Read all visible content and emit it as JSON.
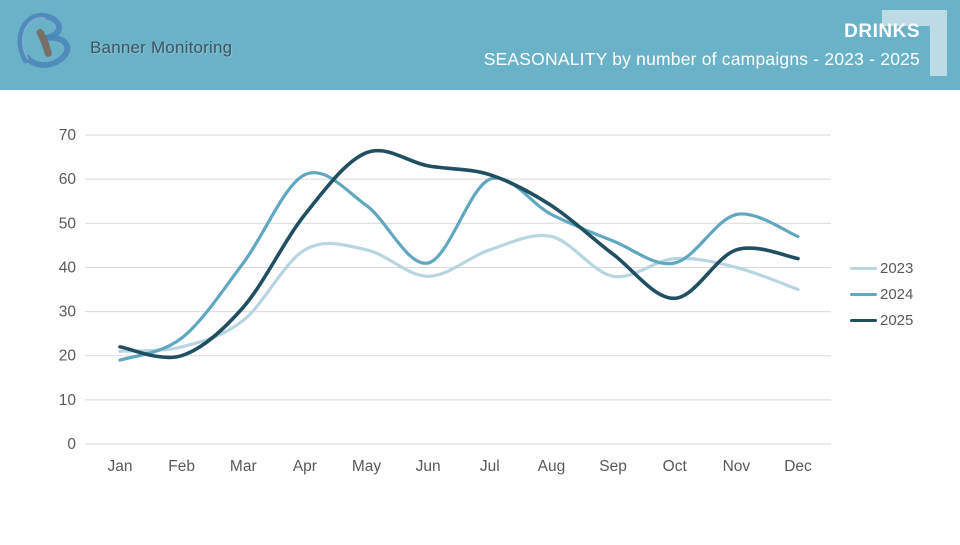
{
  "header": {
    "brand": "Banner Monitoring",
    "category": "DRINKS",
    "title": "SEASONALITY by number of campaigns - 2023 - 2025",
    "background_color": "#6ab2c8",
    "corner_accent_color": "#bcdbe4"
  },
  "chart_data": {
    "type": "line",
    "title": "SEASONALITY by number of campaigns - 2023 - 2025",
    "categories": [
      "Jan",
      "Feb",
      "Mar",
      "Apr",
      "May",
      "Jun",
      "Jul",
      "Aug",
      "Sep",
      "Oct",
      "Nov",
      "Dec"
    ],
    "series": [
      {
        "name": "2023",
        "color": "#b7d6e1",
        "values": [
          21,
          22,
          28,
          44,
          44,
          38,
          44,
          47,
          38,
          42,
          40,
          35
        ]
      },
      {
        "name": "2024",
        "color": "#5fa8c0",
        "values": [
          19,
          24,
          41,
          61,
          54,
          41,
          60,
          52,
          46,
          41,
          52,
          47
        ]
      },
      {
        "name": "2025",
        "color": "#1f4f60",
        "values": [
          22,
          20,
          31,
          52,
          66,
          63,
          61,
          54,
          43,
          33,
          44,
          42
        ]
      }
    ],
    "ylabel": "",
    "xlabel": "",
    "ylim": [
      0,
      70
    ],
    "yticks": [
      0,
      10,
      20,
      30,
      40,
      50,
      60,
      70
    ],
    "grid": true,
    "legend_position": "right",
    "gridline_color": "#d9d9d9",
    "tick_label_color": "#595959"
  }
}
